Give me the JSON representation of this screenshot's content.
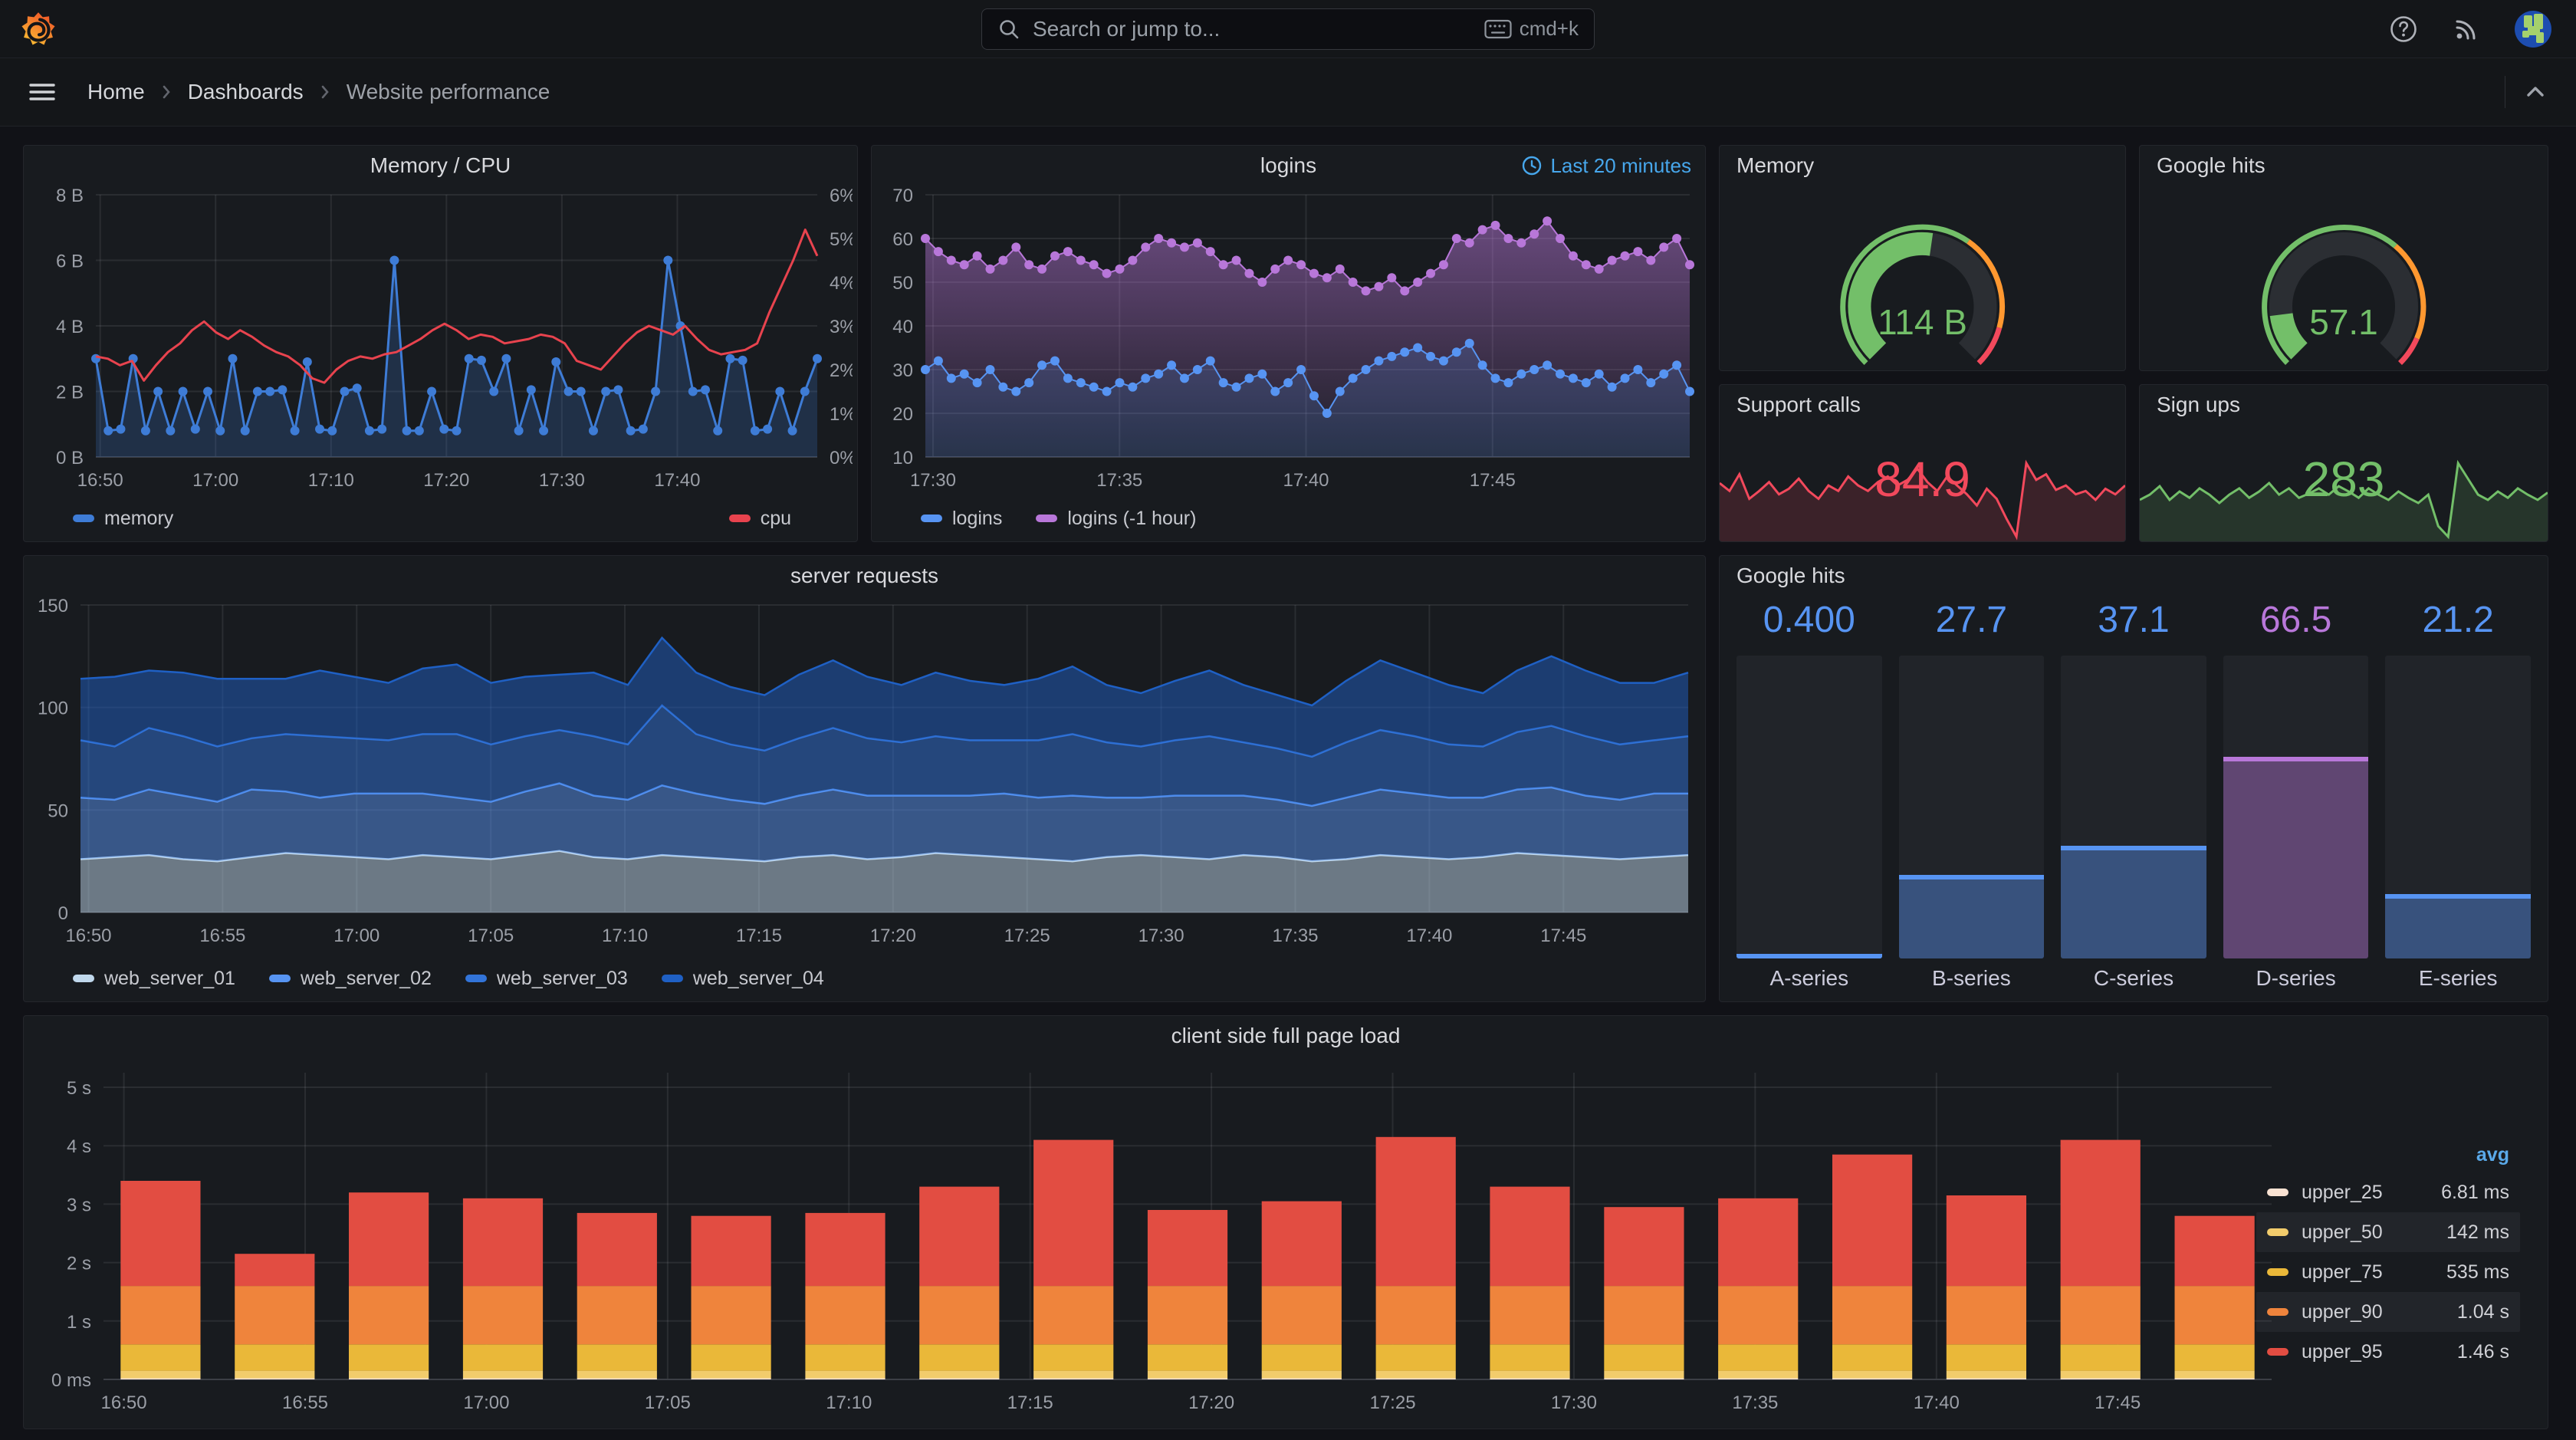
{
  "topbar": {
    "search_placeholder": "Search or jump to...",
    "shortcut_label": "cmd+k"
  },
  "icons": {
    "search": "magnifier",
    "shortcut": "keyboard",
    "help": "question-circle",
    "news": "rss",
    "avatar": "user-avatar",
    "menu": "hamburger",
    "collapse": "chevron-up",
    "crumb_sep": "chevron-right",
    "clock": "clock"
  },
  "breadcrumb": {
    "items": [
      {
        "label": "Home"
      },
      {
        "label": "Dashboards"
      },
      {
        "label": "Website performance"
      }
    ]
  },
  "panels": {
    "mem_cpu": {
      "title": "Memory / CPU"
    },
    "logins": {
      "title": "logins",
      "time_range": "Last 20 minutes"
    },
    "memory_gauge": {
      "title": "Memory"
    },
    "google_gauge": {
      "title": "Google hits"
    },
    "support_calls": {
      "title": "Support calls"
    },
    "sign_ups": {
      "title": "Sign ups"
    },
    "server_requests": {
      "title": "server requests"
    },
    "google_bars": {
      "title": "Google hits"
    },
    "page_load": {
      "title": "client side full page load"
    }
  },
  "chart_data": {
    "mem_cpu": {
      "type": "line",
      "title": "Memory / CPU",
      "legend_position": "bottom-split",
      "grid": true,
      "x_ticks": [
        {
          "f": 0.006,
          "label": "16:50"
        },
        {
          "f": 0.166,
          "label": "17:00"
        },
        {
          "f": 0.326,
          "label": "17:10"
        },
        {
          "f": 0.486,
          "label": "17:20"
        },
        {
          "f": 0.646,
          "label": "17:30"
        },
        {
          "f": 0.806,
          "label": "17:40"
        }
      ],
      "y_left": {
        "min": 0,
        "max": 8,
        "unit": "bytes",
        "ticks": [
          {
            "v": 0,
            "label": "0 B"
          },
          {
            "v": 2,
            "label": "2 B"
          },
          {
            "v": 4,
            "label": "4 B"
          },
          {
            "v": 6,
            "label": "6 B"
          },
          {
            "v": 8,
            "label": "8 B"
          }
        ]
      },
      "y_right": {
        "min": 0,
        "max": 6,
        "unit": "percent",
        "ticks": [
          {
            "v": 0,
            "label": "0%"
          },
          {
            "v": 1,
            "label": "1%"
          },
          {
            "v": 2,
            "label": "2%"
          },
          {
            "v": 3,
            "label": "3%"
          },
          {
            "v": 4,
            "label": "4%"
          },
          {
            "v": 5,
            "label": "5%"
          },
          {
            "v": 6,
            "label": "6%"
          }
        ]
      },
      "series": [
        {
          "name": "memory",
          "axis": "left",
          "color": "#3E7CD6",
          "width": 3,
          "points": true,
          "point_r": 6,
          "fill": "rgba(62,124,214,0.22)",
          "values": [
            3,
            0.8,
            0.85,
            3,
            0.8,
            2,
            0.8,
            2,
            0.85,
            2,
            0.8,
            3,
            0.8,
            2,
            2,
            2.05,
            0.8,
            2.9,
            0.85,
            0.8,
            2,
            2.1,
            0.8,
            0.85,
            6,
            0.8,
            0.8,
            2,
            0.85,
            0.8,
            3,
            2.95,
            2,
            3,
            0.8,
            2.05,
            0.8,
            2.9,
            2,
            2,
            0.8,
            2,
            2.05,
            0.8,
            0.85,
            2,
            6,
            4,
            2,
            2.05,
            0.8,
            3,
            2.95,
            0.8,
            0.85,
            2,
            0.8,
            2,
            3
          ]
        },
        {
          "name": "cpu",
          "axis": "right",
          "color": "#E8434E",
          "width": 3,
          "points": false,
          "values": [
            2.3,
            2.25,
            2.1,
            2.2,
            1.75,
            2.1,
            2.4,
            2.6,
            2.9,
            3.1,
            2.85,
            2.7,
            2.9,
            2.75,
            2.55,
            2.4,
            2.3,
            2.1,
            1.8,
            1.7,
            2.0,
            2.2,
            2.3,
            2.25,
            2.35,
            2.4,
            2.55,
            2.7,
            2.9,
            3.05,
            2.9,
            2.7,
            2.8,
            2.75,
            2.6,
            2.65,
            2.7,
            2.8,
            2.75,
            2.6,
            2.2,
            2.1,
            2.0,
            2.3,
            2.6,
            2.85,
            3.0,
            2.9,
            2.8,
            3.0,
            2.7,
            2.45,
            2.35,
            2.4,
            2.45,
            2.6,
            3.3,
            3.9,
            4.5,
            5.2,
            4.6
          ]
        }
      ]
    },
    "logins": {
      "type": "line",
      "title": "logins",
      "time_range": "Last 20 minutes",
      "legend_position": "bottom",
      "draw_reverse": true,
      "grid": true,
      "x_ticks": [
        {
          "f": 0.01,
          "label": "17:30"
        },
        {
          "f": 0.254,
          "label": "17:35"
        },
        {
          "f": 0.498,
          "label": "17:40"
        },
        {
          "f": 0.742,
          "label": "17:45"
        }
      ],
      "y_left": {
        "min": 10,
        "max": 70,
        "ticks": [
          {
            "v": 10,
            "label": "10"
          },
          {
            "v": 20,
            "label": "20"
          },
          {
            "v": 30,
            "label": "30"
          },
          {
            "v": 40,
            "label": "40"
          },
          {
            "v": 50,
            "label": "50"
          },
          {
            "v": 60,
            "label": "60"
          },
          {
            "v": 70,
            "label": "70"
          }
        ]
      },
      "series": [
        {
          "name": "logins",
          "axis": "left",
          "color": "#5794F2",
          "width": 2,
          "points": true,
          "point_r": 6,
          "fill": "rgba(87,148,242,0.18)",
          "values": [
            30,
            32,
            28,
            29,
            27,
            30,
            26,
            25,
            27,
            31,
            32,
            28,
            27,
            26,
            25,
            27,
            26,
            28,
            29,
            31,
            28,
            30,
            32,
            27,
            26,
            28,
            29,
            25,
            27,
            30,
            24,
            20,
            25,
            28,
            30,
            32,
            33,
            34,
            35,
            33,
            32,
            34,
            36,
            31,
            28,
            27,
            29,
            30,
            31,
            29,
            28,
            27,
            29,
            26,
            28,
            30,
            27,
            29,
            31,
            25
          ]
        },
        {
          "name": "logins (-1 hour)",
          "axis": "left",
          "color": "#B877D9",
          "width": 2,
          "points": true,
          "point_r": 6,
          "fill": [
            "rgba(184,119,217,0.50)",
            "rgba(184,119,217,0.04)"
          ],
          "values": [
            60,
            57,
            55,
            54,
            56,
            53,
            55,
            58,
            54,
            53,
            56,
            57,
            55,
            54,
            52,
            53,
            55,
            58,
            60,
            59,
            58,
            59,
            57,
            54,
            55,
            52,
            50,
            53,
            55,
            54,
            52,
            51,
            53,
            50,
            48,
            49,
            51,
            48,
            50,
            52,
            54,
            60,
            59,
            62,
            63,
            60,
            59,
            61,
            64,
            60,
            56,
            54,
            53,
            55,
            56,
            57,
            55,
            58,
            60,
            54
          ]
        }
      ]
    },
    "memory_gauge": {
      "type": "gauge",
      "title": "Memory",
      "value": "114 B",
      "percent": 0.53,
      "color": "#73BF69",
      "thresholds": [
        {
          "to": 0.63,
          "color": "#73BF69"
        },
        {
          "to": 0.89,
          "color": "#FF9830"
        },
        {
          "to": 1,
          "color": "#F2495C"
        }
      ]
    },
    "google_hits_gauge": {
      "type": "gauge",
      "title": "Google hits",
      "value": "57.1",
      "percent": 0.14,
      "color": "#73BF69",
      "thresholds": [
        {
          "to": 0.65,
          "color": "#73BF69"
        },
        {
          "to": 0.92,
          "color": "#FF9830"
        },
        {
          "to": 1,
          "color": "#F2495C"
        }
      ]
    },
    "support_calls": {
      "type": "sparkline",
      "title": "Support calls",
      "value": "84.9",
      "color": "#F2495C",
      "fill": "rgba(242,73,92,0.16)",
      "values": [
        62,
        55,
        70,
        48,
        55,
        63,
        52,
        57,
        66,
        55,
        48,
        60,
        55,
        68,
        60,
        55,
        63,
        68,
        60,
        65,
        75,
        63,
        55,
        68,
        60,
        52,
        42,
        57,
        48,
        30,
        14,
        80,
        65,
        70,
        56,
        60,
        52,
        55,
        47,
        57,
        52,
        60
      ]
    },
    "sign_ups": {
      "type": "sparkline",
      "title": "Sign ups",
      "value": "283",
      "color": "#73BF69",
      "fill": "rgba(115,191,105,0.16)",
      "values": [
        55,
        60,
        68,
        55,
        63,
        57,
        66,
        60,
        52,
        60,
        66,
        57,
        63,
        71,
        60,
        66,
        57,
        61,
        66,
        60,
        68,
        63,
        57,
        66,
        60,
        55,
        63,
        57,
        52,
        60,
        30,
        20,
        90,
        75,
        60,
        55,
        63,
        57,
        66,
        60,
        55,
        62
      ]
    },
    "server_requests": {
      "type": "stacked_area",
      "title": "server requests",
      "legend_position": "bottom",
      "grid": true,
      "x_ticks": [
        {
          "f": 0.005,
          "label": "16:50"
        },
        {
          "f": 0.0884,
          "label": "16:55"
        },
        {
          "f": 0.1718,
          "label": "17:00"
        },
        {
          "f": 0.2552,
          "label": "17:05"
        },
        {
          "f": 0.3386,
          "label": "17:10"
        },
        {
          "f": 0.422,
          "label": "17:15"
        },
        {
          "f": 0.5054,
          "label": "17:20"
        },
        {
          "f": 0.5888,
          "label": "17:25"
        },
        {
          "f": 0.6722,
          "label": "17:30"
        },
        {
          "f": 0.7556,
          "label": "17:35"
        },
        {
          "f": 0.839,
          "label": "17:40"
        },
        {
          "f": 0.9224,
          "label": "17:45"
        }
      ],
      "y": {
        "min": 0,
        "max": 150,
        "ticks": [
          {
            "v": 0,
            "label": "0"
          },
          {
            "v": 50,
            "label": "50"
          },
          {
            "v": 100,
            "label": "100"
          },
          {
            "v": 150,
            "label": "150"
          }
        ]
      },
      "series": [
        {
          "name": "web_server_01",
          "color": "#C0D8EC",
          "values": [
            26,
            27,
            28,
            26,
            25,
            27,
            29,
            28,
            27,
            26,
            28,
            27,
            26,
            28,
            30,
            27,
            26,
            28,
            27,
            26,
            25,
            27,
            28,
            26,
            27,
            29,
            28,
            27,
            26,
            25,
            27,
            28,
            27,
            26,
            28,
            27,
            25,
            26,
            28,
            27,
            26,
            27,
            29,
            28,
            27,
            26,
            27,
            28
          ]
        },
        {
          "name": "web_server_02",
          "color": "#5794F2",
          "values": [
            30,
            28,
            32,
            31,
            29,
            33,
            30,
            28,
            31,
            32,
            30,
            29,
            28,
            31,
            33,
            30,
            29,
            34,
            31,
            29,
            28,
            30,
            32,
            31,
            30,
            28,
            29,
            31,
            30,
            32,
            29,
            28,
            30,
            31,
            29,
            28,
            27,
            30,
            32,
            31,
            30,
            29,
            31,
            33,
            30,
            29,
            31,
            30
          ]
        },
        {
          "name": "web_server_03",
          "color": "#3274D9",
          "values": [
            28,
            26,
            30,
            29,
            27,
            25,
            28,
            30,
            27,
            26,
            29,
            31,
            28,
            27,
            26,
            29,
            27,
            39,
            29,
            27,
            26,
            28,
            30,
            28,
            26,
            29,
            27,
            26,
            28,
            30,
            27,
            25,
            27,
            29,
            26,
            25,
            24,
            27,
            29,
            28,
            26,
            25,
            28,
            30,
            29,
            27,
            26,
            28
          ]
        },
        {
          "name": "web_server_04",
          "color": "#1F60C4",
          "values": [
            30,
            34,
            28,
            31,
            33,
            29,
            27,
            32,
            30,
            28,
            32,
            34,
            30,
            29,
            27,
            31,
            29,
            33,
            30,
            28,
            27,
            31,
            33,
            30,
            28,
            31,
            29,
            27,
            30,
            33,
            28,
            26,
            29,
            32,
            28,
            26,
            25,
            30,
            34,
            31,
            29,
            26,
            30,
            34,
            32,
            30,
            28,
            31
          ]
        }
      ]
    },
    "google_hits_bars": {
      "type": "bar_gauge",
      "title": "Google hits",
      "max": 100,
      "items": [
        {
          "label": "A-series",
          "display": "0.400",
          "value": 0.4,
          "color": "#5794F2"
        },
        {
          "label": "B-series",
          "display": "27.7",
          "value": 27.7,
          "color": "#5794F2"
        },
        {
          "label": "C-series",
          "display": "37.1",
          "value": 37.1,
          "color": "#5794F2"
        },
        {
          "label": "D-series",
          "display": "66.5",
          "value": 66.5,
          "color": "#B877D9"
        },
        {
          "label": "E-series",
          "display": "21.2",
          "value": 21.2,
          "color": "#5794F2"
        }
      ]
    },
    "page_load": {
      "type": "stacked_bar",
      "title": "client side full page load",
      "legend_header": "avg",
      "legend_position": "right",
      "grid": true,
      "x_ticks": [
        {
          "f": 0.0094,
          "label": "16:50"
        },
        {
          "f": 0.093,
          "label": "16:55"
        },
        {
          "f": 0.1766,
          "label": "17:00"
        },
        {
          "f": 0.2602,
          "label": "17:05"
        },
        {
          "f": 0.3438,
          "label": "17:10"
        },
        {
          "f": 0.4274,
          "label": "17:15"
        },
        {
          "f": 0.511,
          "label": "17:20"
        },
        {
          "f": 0.5946,
          "label": "17:25"
        },
        {
          "f": 0.6782,
          "label": "17:30"
        },
        {
          "f": 0.7618,
          "label": "17:35"
        },
        {
          "f": 0.8454,
          "label": "17:40"
        },
        {
          "f": 0.929,
          "label": "17:45"
        }
      ],
      "y": {
        "min": 0,
        "max": 5.25,
        "ticks": [
          {
            "v": 0,
            "label": "0 ms"
          },
          {
            "v": 1,
            "label": "1 s"
          },
          {
            "v": 2,
            "label": "2 s"
          },
          {
            "v": 3,
            "label": "3 s"
          },
          {
            "v": 4,
            "label": "4 s"
          },
          {
            "v": 5,
            "label": "5 s"
          }
        ]
      },
      "series": [
        {
          "name": "upper_25",
          "color": "#F9E2D2",
          "avg": "6.81 ms",
          "base": 0.02
        },
        {
          "name": "upper_50",
          "color": "#F2CC6C",
          "avg": "142 ms",
          "base": 0.13
        },
        {
          "name": "upper_75",
          "color": "#EAB839",
          "avg": "535 ms",
          "base": 0.45
        },
        {
          "name": "upper_90",
          "color": "#EF843C",
          "avg": "1.04 s",
          "base": 1.0
        },
        {
          "name": "upper_95",
          "color": "#E24D42",
          "avg": "1.46 s",
          "base": null
        }
      ],
      "totals": [
        3.4,
        2.15,
        3.2,
        3.1,
        2.85,
        2.8,
        2.85,
        3.3,
        4.1,
        2.9,
        3.05,
        4.15,
        3.3,
        2.95,
        3.1,
        3.85,
        3.15,
        4.1,
        2.8
      ]
    }
  }
}
